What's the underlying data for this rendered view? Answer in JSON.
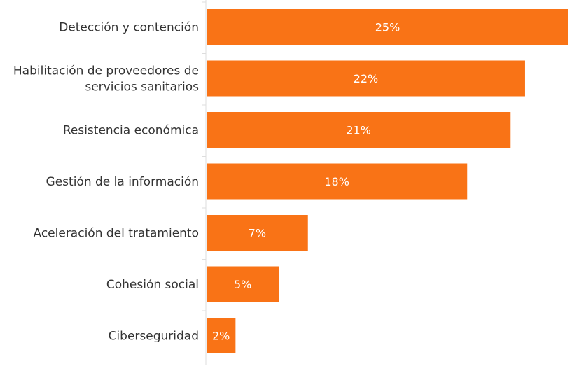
{
  "chart_data": {
    "type": "bar",
    "orientation": "horizontal",
    "categories": [
      [
        "Detección y contención"
      ],
      [
        "Habilitación de proveedores de",
        "servicios sanitarios"
      ],
      [
        "Resistencia económica"
      ],
      [
        "Gestión de la información"
      ],
      [
        "Aceleración del tratamiento"
      ],
      [
        "Cohesión social"
      ],
      [
        "Ciberseguridad"
      ]
    ],
    "values": [
      25,
      22,
      21,
      18,
      7,
      5,
      2
    ],
    "value_labels": [
      "25%",
      "22%",
      "21%",
      "18%",
      "7%",
      "5%",
      "2%"
    ],
    "xlim": [
      0,
      25
    ],
    "grid": false,
    "legend": "none",
    "bar_color": "#f97316",
    "axis_color": "#dddddd"
  }
}
